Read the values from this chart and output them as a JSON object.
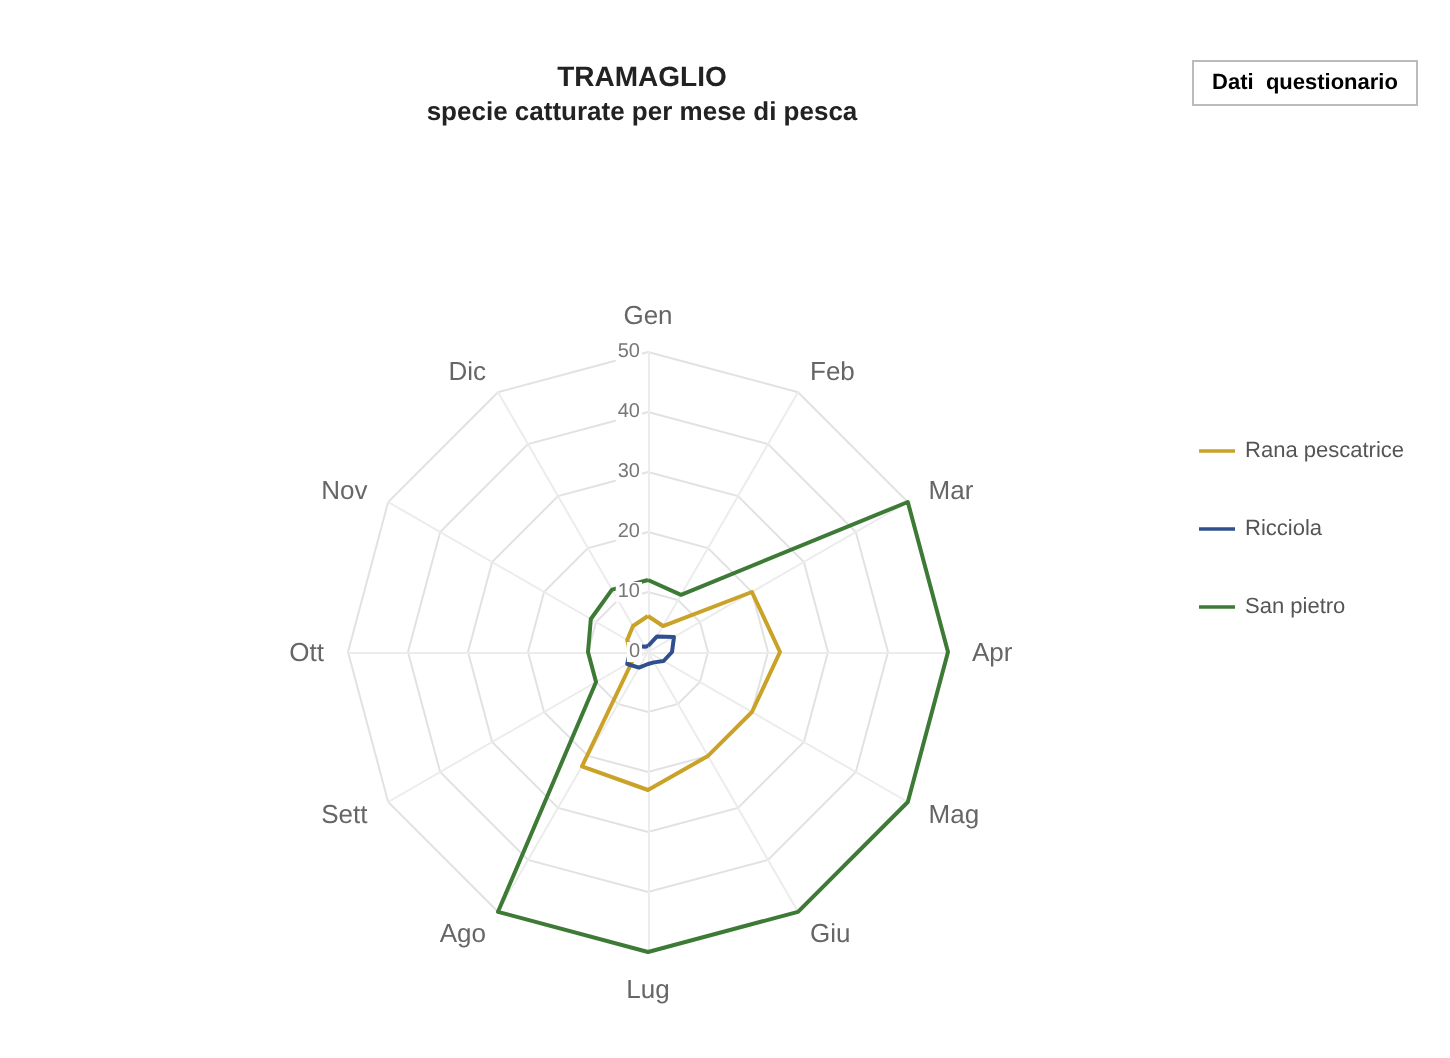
{
  "chart_data": {
    "type": "radar",
    "title": "TRAMAGLIO",
    "subtitle": "specie catturate per mese di pesca",
    "annotations": [
      "Dati  questionario"
    ],
    "categories": [
      "Gen",
      "Feb",
      "Mar",
      "Apr",
      "Mag",
      "Giu",
      "Lug",
      "Ago",
      "Sett",
      "Ott",
      "Nov",
      "Dic"
    ],
    "ylim": [
      0,
      50
    ],
    "yticks": [
      0,
      10,
      20,
      30,
      40,
      50
    ],
    "grid": true,
    "legend": "right",
    "series": [
      {
        "name": "Rana pescatrice",
        "color": "#c9a227",
        "values": [
          6,
          5,
          20,
          22,
          20,
          20,
          23,
          22,
          3,
          3,
          4,
          5
        ]
      },
      {
        "name": "Ricciola",
        "color": "#2f4f8f",
        "values": [
          1,
          3,
          5,
          4,
          3,
          2,
          2,
          3,
          4,
          3,
          2,
          1
        ]
      },
      {
        "name": "San pietro",
        "color": "#3d7a35",
        "values": [
          12,
          11,
          50,
          50,
          50,
          50,
          50,
          50,
          10,
          10,
          11,
          12
        ]
      }
    ]
  }
}
